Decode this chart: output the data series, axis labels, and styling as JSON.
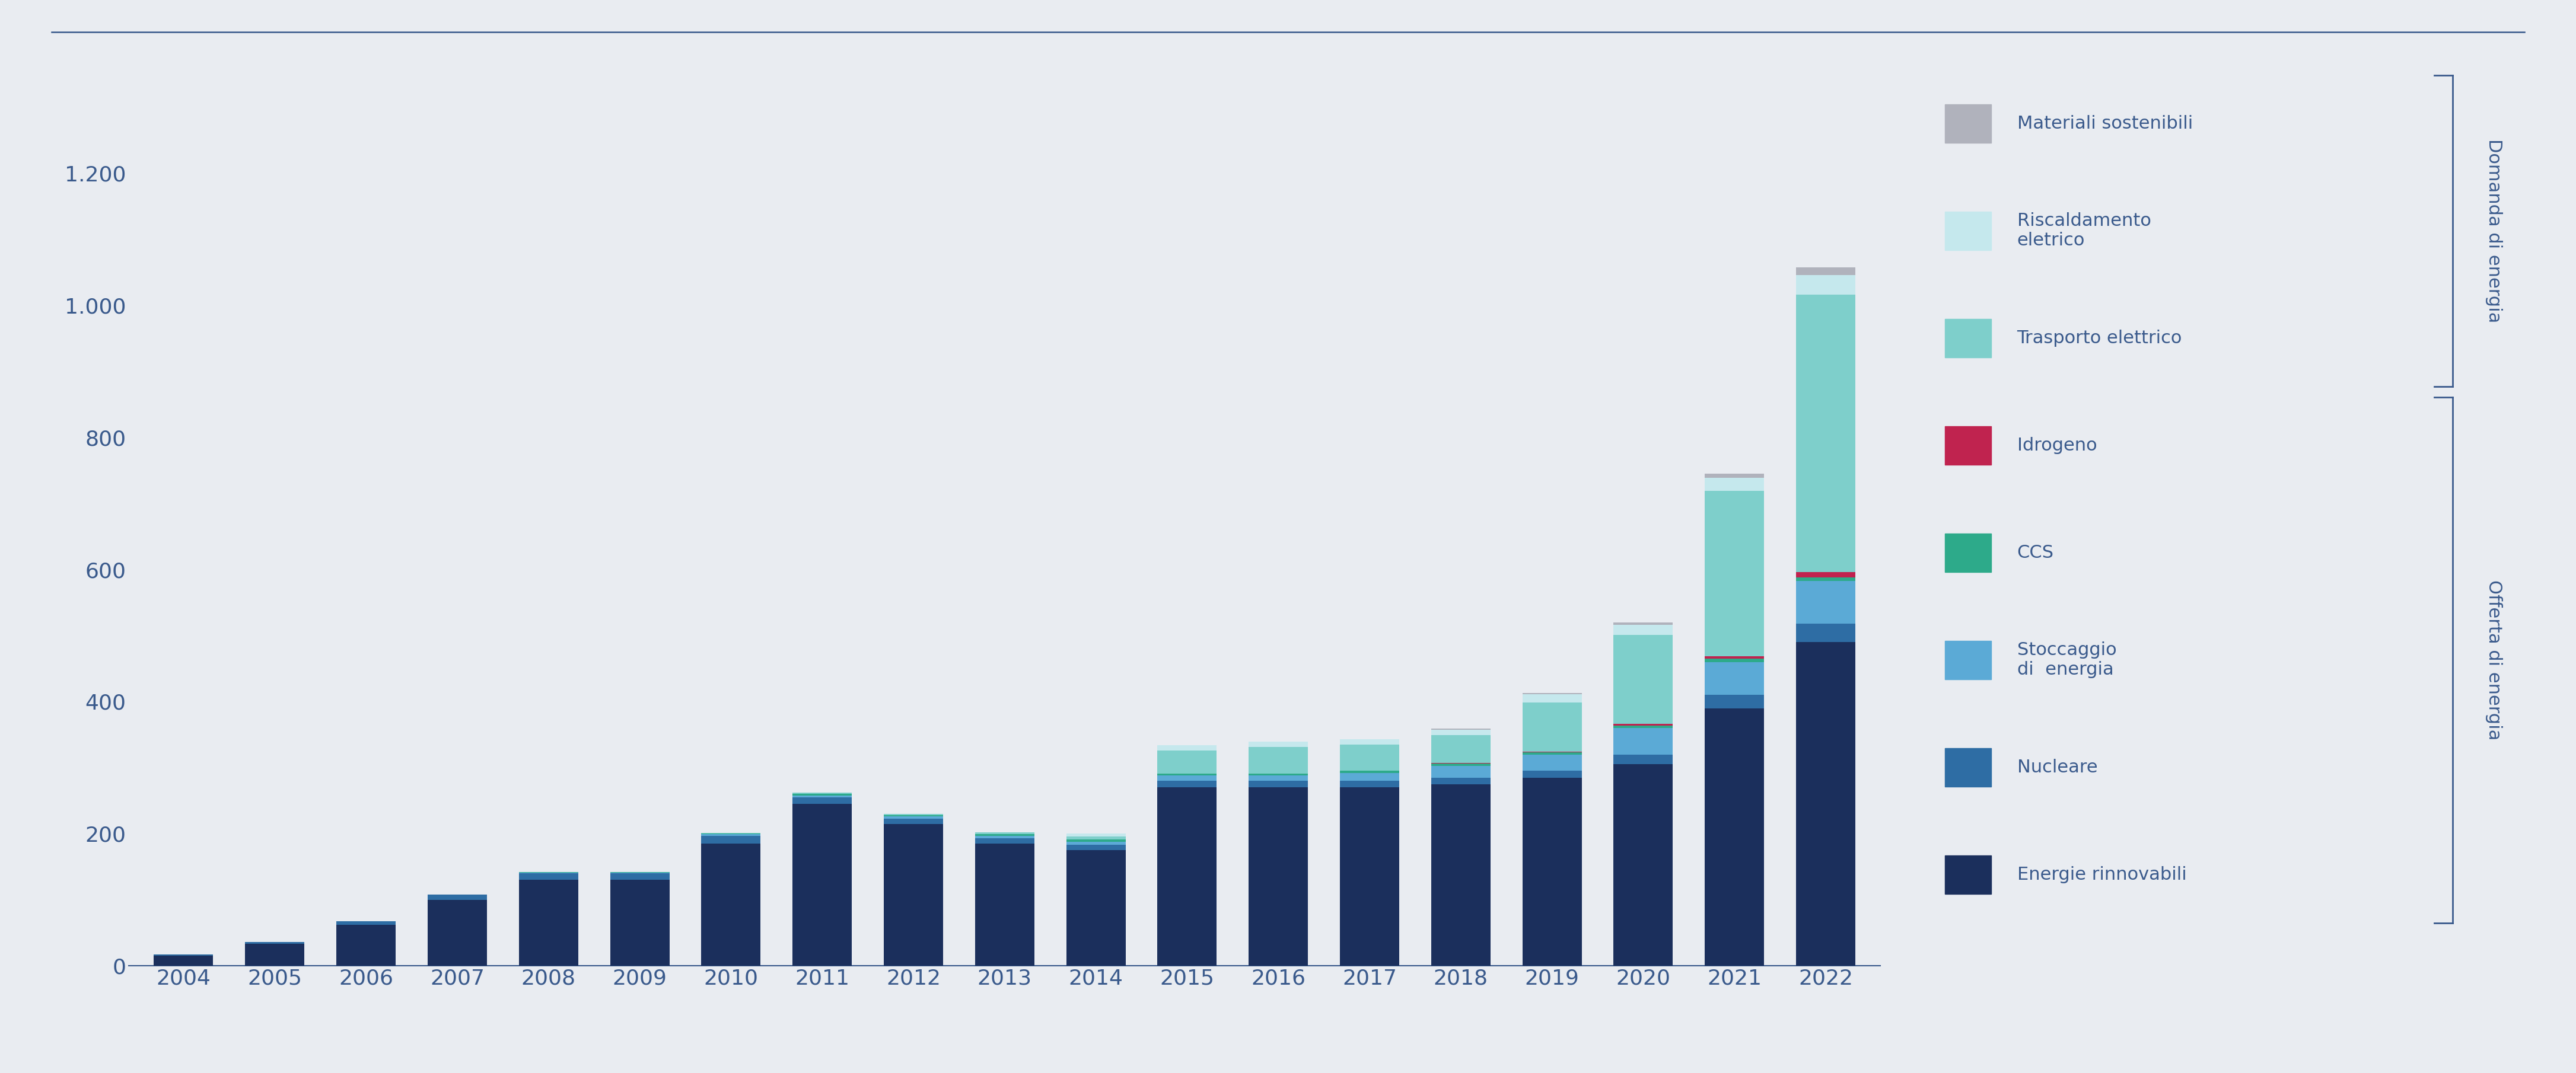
{
  "years": [
    2004,
    2005,
    2006,
    2007,
    2008,
    2009,
    2010,
    2011,
    2012,
    2013,
    2014,
    2015,
    2016,
    2017,
    2018,
    2019,
    2020,
    2021,
    2022
  ],
  "series": {
    "Energie rinnovabili": [
      15,
      33,
      62,
      100,
      130,
      130,
      185,
      245,
      215,
      185,
      175,
      270,
      270,
      270,
      275,
      285,
      305,
      390,
      490
    ],
    "Nucleare": [
      2,
      3,
      5,
      8,
      10,
      10,
      12,
      10,
      8,
      8,
      8,
      10,
      10,
      10,
      10,
      10,
      15,
      20,
      28
    ],
    "Stoccaggio di energia": [
      0,
      0,
      0,
      0,
      1,
      1,
      2,
      3,
      3,
      4,
      5,
      8,
      8,
      12,
      18,
      25,
      40,
      50,
      65
    ],
    "CCS": [
      0,
      0,
      0,
      0,
      1,
      1,
      1,
      2,
      2,
      2,
      3,
      3,
      3,
      3,
      3,
      3,
      4,
      5,
      5
    ],
    "Idrogeno": [
      0,
      0,
      0,
      0,
      0,
      0,
      0,
      0,
      0,
      0,
      0,
      0,
      0,
      0,
      1,
      1,
      2,
      4,
      8
    ],
    "Trasporto elettrico": [
      0,
      0,
      0,
      0,
      0,
      0,
      1,
      2,
      2,
      3,
      5,
      35,
      40,
      40,
      42,
      75,
      135,
      250,
      420
    ],
    "Riscaldamento elettrico": [
      0,
      0,
      0,
      0,
      0,
      0,
      0,
      0,
      0,
      0,
      4,
      8,
      8,
      8,
      8,
      12,
      15,
      20,
      30
    ],
    "Materiali sostenibili": [
      0,
      0,
      0,
      0,
      0,
      0,
      0,
      0,
      0,
      0,
      0,
      0,
      0,
      0,
      2,
      2,
      4,
      6,
      12
    ]
  },
  "colors": {
    "Energie rinnovabili": "#1b2f5c",
    "Nucleare": "#2e6da4",
    "Stoccaggio di energia": "#5baad6",
    "CCS": "#2daa8a",
    "Idrogeno": "#c0234f",
    "Trasporto elettrico": "#7ecfcb",
    "Riscaldamento elettrico": "#c5e8ed",
    "Materiali sostenibili": "#b0b2bc"
  },
  "ylim": [
    0,
    1300
  ],
  "yticks": [
    0,
    200,
    400,
    600,
    800,
    1000,
    1200
  ],
  "ytick_labels": [
    "0",
    "200",
    "400",
    "600",
    "800",
    "1.000",
    "1.200"
  ],
  "background_color": "#e9ecf1",
  "text_color": "#3a5a8c",
  "stack_order": [
    "Energie rinnovabili",
    "Nucleare",
    "Stoccaggio di energia",
    "CCS",
    "Idrogeno",
    "Trasporto elettrico",
    "Riscaldamento elettrico",
    "Materiali sostenibili"
  ],
  "legend_order": [
    "Materiali sostenibili",
    "Riscaldamento elettrico",
    "Trasporto elettrico",
    "Idrogeno",
    "CCS",
    "Stoccaggio di energia",
    "Nucleare",
    "Energie rinnovabili"
  ],
  "legend_labels": {
    "Materiali sostenibili": "Materiali sostenibili",
    "Riscaldamento elettrico": "Riscaldamento\neletrico",
    "Trasporto elettrico": "Trasporto elettrico",
    "Idrogeno": "Idrogeno",
    "CCS": "CCS",
    "Stoccaggio di energia": "Stoccaggio\ndi  energia",
    "Nucleare": "Nucleare",
    "Energie rinnovabili": "Energie rinnovabili"
  },
  "demand_label": "Domanda di energia",
  "supply_label": "Offerta di energia"
}
